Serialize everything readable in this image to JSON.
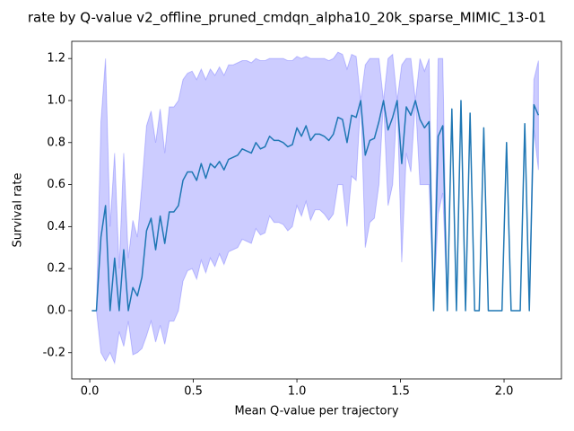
{
  "chart_data": {
    "type": "line",
    "title": "rate by Q-value v2_offline_pruned_cmdqn_alpha10_20k_sparse_MIMIC_13-01",
    "xlabel": "Mean Q-value per trajectory",
    "ylabel": "Survival rate",
    "xlim": [
      -0.087,
      2.277
    ],
    "ylim": [
      -0.325,
      1.282
    ],
    "xticks": [
      {
        "value": 0,
        "label": "0.0"
      },
      0.5,
      {
        "value": 1,
        "label": "1.0"
      },
      1.5,
      {
        "value": 2,
        "label": "2.0"
      }
    ],
    "yticks": [
      -0.2,
      {
        "value": 0,
        "label": "0.0"
      },
      0.2,
      0.4,
      0.6,
      0.8,
      {
        "value": 1,
        "label": "1.0"
      },
      1.2
    ],
    "x": [
      0.01,
      0.032,
      0.054,
      0.076,
      0.098,
      0.12,
      0.142,
      0.164,
      0.186,
      0.208,
      0.23,
      0.252,
      0.274,
      0.296,
      0.318,
      0.34,
      0.362,
      0.384,
      0.406,
      0.428,
      0.45,
      0.472,
      0.494,
      0.516,
      0.538,
      0.56,
      0.582,
      0.604,
      0.626,
      0.648,
      0.67,
      0.692,
      0.714,
      0.736,
      0.758,
      0.78,
      0.802,
      0.824,
      0.846,
      0.868,
      0.89,
      0.912,
      0.934,
      0.956,
      0.978,
      1.0,
      1.022,
      1.044,
      1.066,
      1.088,
      1.11,
      1.132,
      1.154,
      1.176,
      1.198,
      1.22,
      1.242,
      1.264,
      1.286,
      1.308,
      1.33,
      1.352,
      1.374,
      1.396,
      1.418,
      1.44,
      1.462,
      1.484,
      1.506,
      1.528,
      1.55,
      1.572,
      1.594,
      1.616,
      1.638,
      1.66,
      1.682,
      1.704,
      1.726,
      1.748,
      1.77,
      1.792,
      1.814,
      1.836,
      1.858,
      1.88,
      1.902,
      1.924,
      1.946,
      1.968,
      1.99,
      2.012,
      2.034,
      2.056,
      2.078,
      2.1,
      2.122,
      2.144,
      2.166
    ],
    "series": [
      {
        "color": "#1f77b4",
        "band_color": "#0000ff",
        "values": [
          0,
          0,
          0.35,
          0.5,
          0,
          0.25,
          0,
          0.29,
          0,
          0.11,
          0.07,
          0.16,
          0.38,
          0.44,
          0.29,
          0.45,
          0.32,
          0.47,
          0.47,
          0.5,
          0.62,
          0.66,
          0.66,
          0.62,
          0.7,
          0.63,
          0.7,
          0.68,
          0.71,
          0.67,
          0.72,
          0.73,
          0.74,
          0.77,
          0.76,
          0.75,
          0.8,
          0.77,
          0.78,
          0.83,
          0.81,
          0.81,
          0.8,
          0.78,
          0.79,
          0.87,
          0.83,
          0.88,
          0.81,
          0.84,
          0.84,
          0.83,
          0.81,
          0.84,
          0.92,
          0.91,
          0.8,
          0.93,
          0.92,
          1.0,
          0.74,
          0.81,
          0.82,
          0.9,
          1.0,
          0.86,
          0.92,
          1.0,
          0.7,
          0.97,
          0.93,
          1.0,
          0.91,
          0.87,
          0.9,
          0,
          0.83,
          0.88,
          0,
          0.96,
          0,
          1.0,
          0,
          0.94,
          0,
          0,
          0.87,
          0,
          0,
          0,
          0,
          0.8,
          0,
          0,
          0,
          0.89,
          0,
          0.98,
          0.93
        ],
        "upper": [
          0,
          0,
          0.9,
          1.2,
          0.4,
          0.75,
          0.2,
          0.75,
          0.25,
          0.43,
          0.35,
          0.6,
          0.88,
          0.95,
          0.8,
          0.96,
          0.75,
          0.97,
          0.97,
          1.0,
          1.1,
          1.13,
          1.14,
          1.1,
          1.15,
          1.1,
          1.15,
          1.12,
          1.16,
          1.12,
          1.17,
          1.17,
          1.18,
          1.19,
          1.19,
          1.18,
          1.2,
          1.19,
          1.19,
          1.2,
          1.2,
          1.2,
          1.2,
          1.19,
          1.19,
          1.21,
          1.2,
          1.21,
          1.2,
          1.2,
          1.2,
          1.2,
          1.19,
          1.2,
          1.23,
          1.22,
          1.15,
          1.22,
          1.21,
          1.0,
          1.17,
          1.2,
          1.2,
          1.2,
          1.0,
          1.2,
          1.22,
          1.0,
          1.17,
          1.2,
          1.2,
          1.0,
          1.2,
          1.14,
          1.2,
          0,
          1.2,
          1.2,
          0,
          0.96,
          0,
          1.0,
          0,
          0.94,
          0,
          0,
          0.87,
          0,
          0,
          0,
          0,
          0.8,
          0,
          0,
          0,
          0.89,
          0,
          1.1,
          1.19
        ],
        "lower": [
          0,
          0,
          -0.2,
          -0.24,
          -0.2,
          -0.25,
          -0.1,
          -0.17,
          -0.05,
          -0.21,
          -0.2,
          -0.18,
          -0.12,
          -0.05,
          -0.15,
          -0.07,
          -0.16,
          -0.05,
          -0.05,
          0,
          0.14,
          0.19,
          0.2,
          0.15,
          0.24,
          0.18,
          0.25,
          0.21,
          0.27,
          0.22,
          0.28,
          0.29,
          0.3,
          0.34,
          0.33,
          0.32,
          0.39,
          0.36,
          0.37,
          0.45,
          0.42,
          0.42,
          0.41,
          0.38,
          0.4,
          0.5,
          0.45,
          0.52,
          0.43,
          0.48,
          0.48,
          0.46,
          0.43,
          0.46,
          0.6,
          0.6,
          0.4,
          0.64,
          0.62,
          1.0,
          0.3,
          0.42,
          0.44,
          0.6,
          1.0,
          0.5,
          0.6,
          1.0,
          0.23,
          0.75,
          0.66,
          1.0,
          0.6,
          0.6,
          0.6,
          0,
          0.46,
          0.56,
          0,
          0.96,
          0,
          1.0,
          0,
          0.94,
          0,
          0,
          0.87,
          0,
          0,
          0,
          0,
          0.8,
          0,
          0,
          0,
          0.89,
          0,
          0.86,
          0.67
        ]
      }
    ]
  }
}
